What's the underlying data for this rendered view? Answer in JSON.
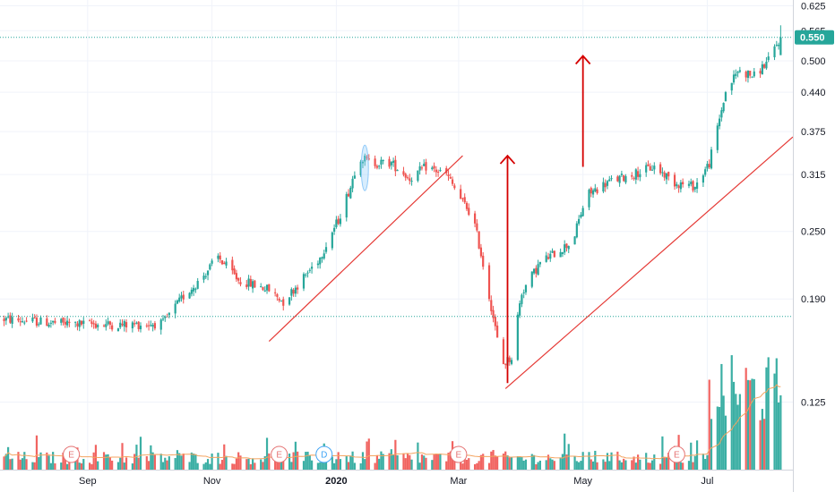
{
  "chart_data": {
    "type": "candlestick",
    "title": "",
    "xlabel": "",
    "ylabel": "",
    "y_ticks": [
      "0.625",
      "0.565",
      "0.500",
      "0.440",
      "0.375",
      "0.315",
      "0.250",
      "0.190",
      "0.125"
    ],
    "y_scale": "log",
    "ylim": [
      0.095,
      0.64
    ],
    "x_ticks": [
      "Sep",
      "Nov",
      "2020",
      "Mar",
      "May",
      "Jul"
    ],
    "x_tick_dates": [
      "2019-09-01",
      "2019-11-01",
      "2020-01-01",
      "2020-03-01",
      "2020-05-01",
      "2020-07-01"
    ],
    "x_range": [
      "2019-07-20",
      "2020-08-12"
    ],
    "last_price": 0.55,
    "last_price_label": "0.550",
    "horizontal_levels": [
      0.55,
      0.177
    ],
    "price_waypoints": [
      [
        "2019-07-22",
        0.175
      ],
      [
        "2019-08-20",
        0.172
      ],
      [
        "2019-09-20",
        0.171
      ],
      [
        "2019-10-08",
        0.172
      ],
      [
        "2019-10-18",
        0.192
      ],
      [
        "2019-10-26",
        0.205
      ],
      [
        "2019-11-04",
        0.225
      ],
      [
        "2019-11-14",
        0.205
      ],
      [
        "2019-11-28",
        0.198
      ],
      [
        "2019-12-06",
        0.188
      ],
      [
        "2019-12-15",
        0.205
      ],
      [
        "2019-12-24",
        0.225
      ],
      [
        "2020-01-02",
        0.262
      ],
      [
        "2020-01-08",
        0.3
      ],
      [
        "2020-01-12",
        0.34
      ],
      [
        "2020-01-18",
        0.33
      ],
      [
        "2020-01-28",
        0.33
      ],
      [
        "2020-02-06",
        0.31
      ],
      [
        "2020-02-14",
        0.325
      ],
      [
        "2020-02-24",
        0.315
      ],
      [
        "2020-03-02",
        0.285
      ],
      [
        "2020-03-08",
        0.265
      ],
      [
        "2020-03-15",
        0.2
      ],
      [
        "2020-03-22",
        0.145
      ],
      [
        "2020-03-27",
        0.15
      ],
      [
        "2020-04-01",
        0.195
      ],
      [
        "2020-04-10",
        0.22
      ],
      [
        "2020-04-18",
        0.23
      ],
      [
        "2020-04-26",
        0.24
      ],
      [
        "2020-05-03",
        0.29
      ],
      [
        "2020-05-13",
        0.305
      ],
      [
        "2020-05-25",
        0.315
      ],
      [
        "2020-06-05",
        0.325
      ],
      [
        "2020-06-15",
        0.305
      ],
      [
        "2020-06-25",
        0.3
      ],
      [
        "2020-07-02",
        0.33
      ],
      [
        "2020-07-06",
        0.38
      ],
      [
        "2020-07-10",
        0.44
      ],
      [
        "2020-07-16",
        0.48
      ],
      [
        "2020-07-24",
        0.47
      ],
      [
        "2020-07-31",
        0.5
      ],
      [
        "2020-08-06",
        0.55
      ]
    ],
    "volume_moving_average": true,
    "drawings": {
      "trendlines": [
        {
          "from": [
            "2019-11-29",
            0.16
          ],
          "to": [
            "2020-03-03",
            0.34
          ]
        },
        {
          "from": [
            "2020-03-24",
            0.132
          ],
          "to": [
            "2020-08-12",
            0.367
          ]
        }
      ],
      "arrows": [
        {
          "date": "2020-03-25",
          "from": 0.135,
          "to": 0.34
        },
        {
          "date": "2020-05-01",
          "from": 0.325,
          "to": 0.51
        }
      ],
      "highlight_ellipse": {
        "date": "2020-01-15",
        "from": 0.295,
        "to": 0.355
      }
    },
    "events": [
      {
        "label": "E",
        "date": "2019-08-24",
        "kind": "earnings"
      },
      {
        "label": "E",
        "date": "2019-12-04",
        "kind": "earnings"
      },
      {
        "label": "D",
        "date": "2019-12-26",
        "kind": "dividend"
      },
      {
        "label": "E",
        "date": "2020-03-01",
        "kind": "earnings"
      },
      {
        "label": "E",
        "date": "2020-06-16",
        "kind": "earnings"
      }
    ]
  },
  "colors": {
    "up": "#26a69a",
    "down": "#ef5350",
    "grid": "#f0f3fa",
    "level_line": "#26a69a",
    "price_tag": "#26a69a",
    "trendline": "#e53935",
    "arrow": "#d50000",
    "volume_ma": "#f4a460",
    "ellipse": "#90caf9",
    "earnings": "#e57373",
    "dividend": "#42a5f5",
    "axis_text": "#131722",
    "axis_border": "#d1d4dc"
  }
}
